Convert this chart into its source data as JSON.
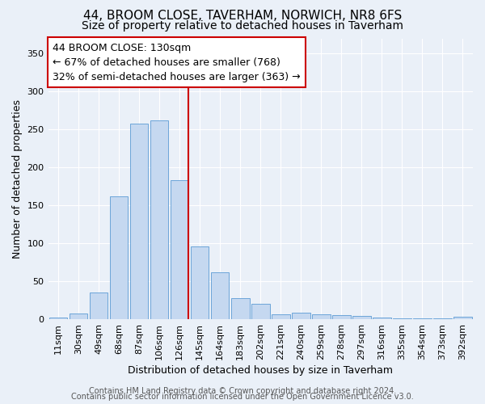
{
  "title": "44, BROOM CLOSE, TAVERHAM, NORWICH, NR8 6FS",
  "subtitle": "Size of property relative to detached houses in Taverham",
  "xlabel": "Distribution of detached houses by size in Taverham",
  "ylabel": "Number of detached properties",
  "categories": [
    "11sqm",
    "30sqm",
    "49sqm",
    "68sqm",
    "87sqm",
    "106sqm",
    "126sqm",
    "145sqm",
    "164sqm",
    "183sqm",
    "202sqm",
    "221sqm",
    "240sqm",
    "259sqm",
    "278sqm",
    "297sqm",
    "316sqm",
    "335sqm",
    "354sqm",
    "373sqm",
    "392sqm"
  ],
  "values": [
    2,
    8,
    35,
    162,
    258,
    262,
    183,
    96,
    62,
    28,
    20,
    6,
    9,
    6,
    5,
    4,
    2,
    1,
    1,
    1,
    3
  ],
  "bar_color": "#c5d8f0",
  "bar_edge_color": "#5b9bd5",
  "red_line_index": 6,
  "red_line_label": "44 BROOM CLOSE: 130sqm",
  "annotation_line2": "← 67% of detached houses are smaller (768)",
  "annotation_line3": "32% of semi-detached houses are larger (363) →",
  "annotation_box_color": "#ffffff",
  "annotation_box_edge": "#cc0000",
  "red_line_color": "#cc0000",
  "ylim": [
    0,
    370
  ],
  "yticks": [
    0,
    50,
    100,
    150,
    200,
    250,
    300,
    350
  ],
  "bg_color": "#eaf0f8",
  "footer_line1": "Contains HM Land Registry data © Crown copyright and database right 2024.",
  "footer_line2": "Contains public sector information licensed under the Open Government Licence v3.0.",
  "title_fontsize": 11,
  "subtitle_fontsize": 10,
  "xlabel_fontsize": 9,
  "ylabel_fontsize": 9,
  "tick_fontsize": 8,
  "footer_fontsize": 7
}
